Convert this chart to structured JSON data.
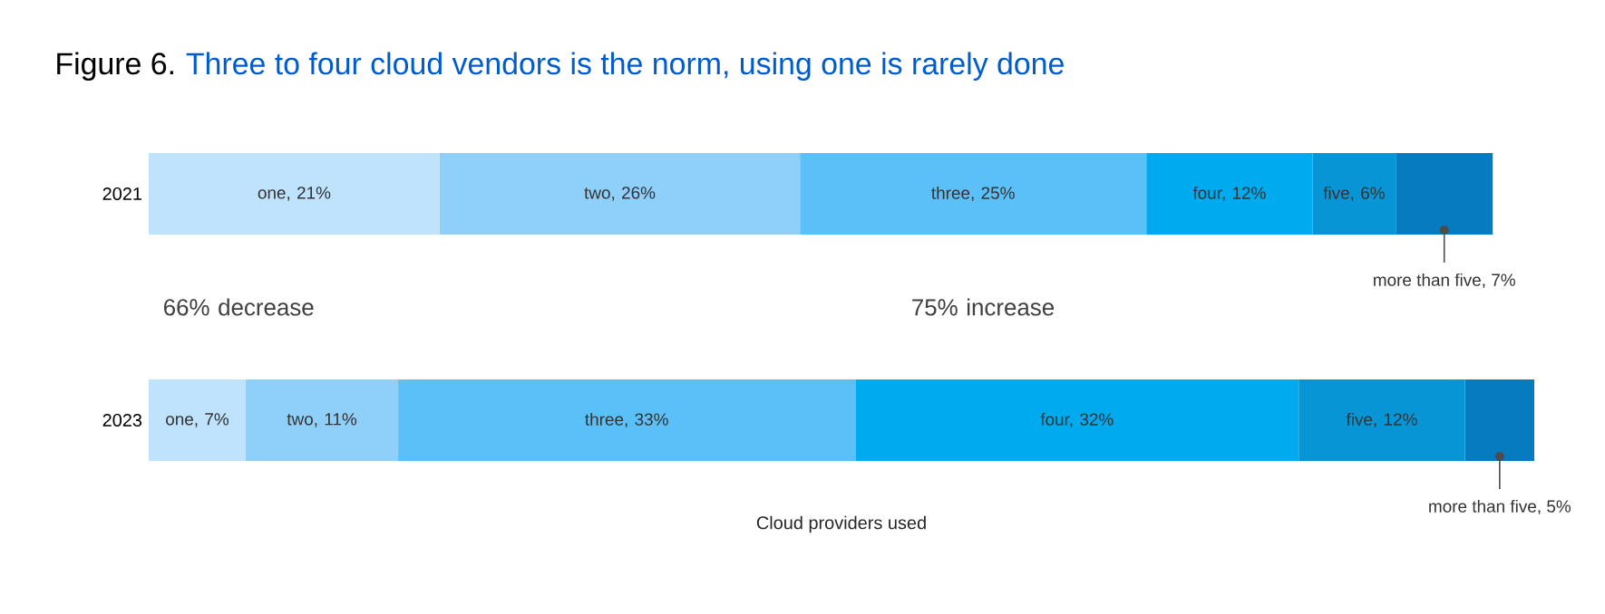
{
  "chart_data": {
    "type": "bar",
    "orientation": "horizontal",
    "stacked": true,
    "title": "Figure 6.",
    "subtitle": "Three to four cloud vendors is the norm, using one is rarely done",
    "xlabel": "Cloud providers used",
    "categories": [
      "2021",
      "2023"
    ],
    "series": [
      {
        "color": "#bfe3fc",
        "values": [
          21,
          7
        ],
        "value_labels": [
          "one, 21%",
          "one, 7%"
        ]
      },
      {
        "color": "#8fd0fa",
        "values": [
          26,
          11
        ],
        "value_labels": [
          "two, 26%",
          "two, 11%"
        ]
      },
      {
        "color": "#5cc0f8",
        "values": [
          25,
          33
        ],
        "value_labels": [
          "three, 25%",
          "three, 33%"
        ]
      },
      {
        "color": "#00aaef",
        "values": [
          12,
          32
        ],
        "value_labels": [
          "four, 12%",
          "four, 32%"
        ]
      },
      {
        "color": "#0895d6",
        "values": [
          6,
          12
        ],
        "value_labels": [
          "five, 6%",
          "five, 12%"
        ]
      },
      {
        "color": "#077bc0",
        "values": [
          7,
          5
        ],
        "value_labels": [
          "more than five, 7%",
          "more than five, 5%"
        ]
      }
    ],
    "annotations": [
      "66% decrease",
      "75% increase"
    ],
    "grid": false
  }
}
